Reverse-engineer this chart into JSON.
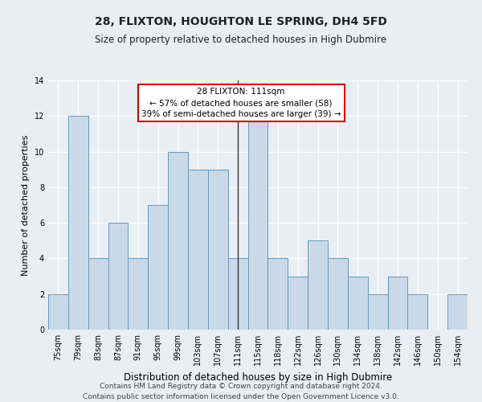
{
  "title_line1": "28, FLIXTON, HOUGHTON LE SPRING, DH4 5FD",
  "title_line2": "Size of property relative to detached houses in High Dubmire",
  "xlabel": "Distribution of detached houses by size in High Dubmire",
  "ylabel": "Number of detached properties",
  "categories": [
    "75sqm",
    "79sqm",
    "83sqm",
    "87sqm",
    "91sqm",
    "95sqm",
    "99sqm",
    "103sqm",
    "107sqm",
    "111sqm",
    "115sqm",
    "118sqm",
    "122sqm",
    "126sqm",
    "130sqm",
    "134sqm",
    "138sqm",
    "142sqm",
    "146sqm",
    "150sqm",
    "154sqm"
  ],
  "values": [
    2,
    12,
    4,
    6,
    4,
    7,
    10,
    9,
    9,
    4,
    12,
    4,
    3,
    5,
    4,
    3,
    2,
    3,
    2,
    0,
    2
  ],
  "highlight_index": 9,
  "bar_color": "#c9d9e8",
  "bar_edge_color": "#6699bb",
  "highlight_line_color": "#333333",
  "ylim": [
    0,
    14
  ],
  "yticks": [
    0,
    2,
    4,
    6,
    8,
    10,
    12,
    14
  ],
  "annotation_title": "28 FLIXTON: 111sqm",
  "annotation_line1": "← 57% of detached houses are smaller (58)",
  "annotation_line2": "39% of semi-detached houses are larger (39) →",
  "annotation_box_color": "#ffffff",
  "annotation_box_edgecolor": "#cc0000",
  "footer_line1": "Contains HM Land Registry data © Crown copyright and database right 2024.",
  "footer_line2": "Contains public sector information licensed under the Open Government Licence v3.0.",
  "background_color": "#e8eef4",
  "grid_color": "#ffffff",
  "title1_fontsize": 10,
  "title2_fontsize": 8.5,
  "xlabel_fontsize": 8.5,
  "ylabel_fontsize": 8,
  "tick_fontsize": 7,
  "annotation_fontsize": 7.5,
  "footer_fontsize": 6.5
}
